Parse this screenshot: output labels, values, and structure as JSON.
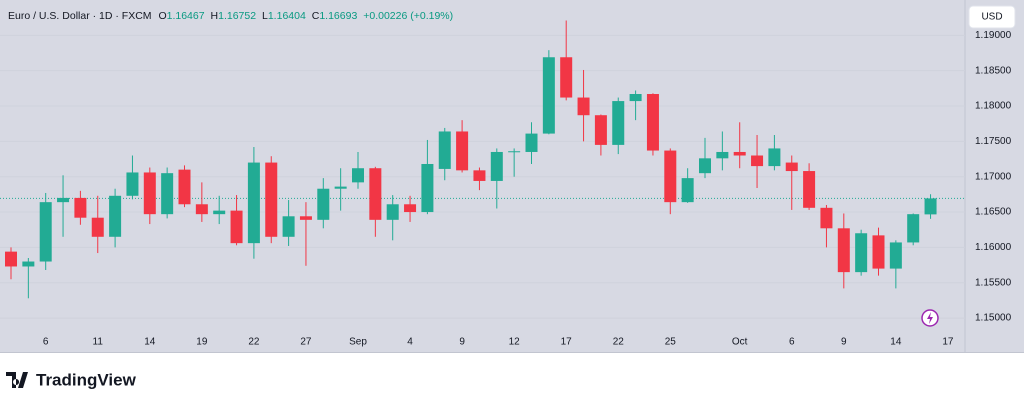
{
  "chart_data": {
    "type": "candlestick",
    "title": "Euro / U.S. Dollar · 1D · FXCM",
    "legend": {
      "o_label": "O",
      "open": 1.16467,
      "h_label": "H",
      "high": 1.16752,
      "l_label": "L",
      "low": 1.16404,
      "c_label": "C",
      "close": 1.16693,
      "change": "+0.00226 (+0.19%)"
    },
    "currency": "USD",
    "brand": "TradingView",
    "up_color": "#22ab94",
    "down_color": "#f23645",
    "last_price_line": true,
    "categories": [
      null,
      null,
      "6",
      null,
      null,
      "11",
      null,
      null,
      "14",
      null,
      null,
      "19",
      null,
      null,
      "22",
      null,
      null,
      "27",
      null,
      null,
      "Sep",
      null,
      null,
      "4",
      null,
      null,
      "9",
      null,
      null,
      "12",
      null,
      null,
      "17",
      null,
      null,
      "22",
      null,
      null,
      "25",
      null,
      null,
      null,
      "Oct",
      null,
      null,
      "6",
      null,
      null,
      "9",
      null,
      null,
      "14",
      null,
      null,
      "17"
    ],
    "open": [
      1.1594,
      1.1573,
      1.158,
      1.1664,
      1.167,
      1.1642,
      1.1615,
      1.1673,
      1.1706,
      1.1647,
      1.171,
      1.1661,
      1.1647,
      1.1652,
      1.1606,
      1.172,
      1.1615,
      1.1644,
      1.1639,
      1.1683,
      1.1692,
      1.1712,
      1.1639,
      1.1661,
      1.165,
      1.1711,
      1.1764,
      1.1709,
      1.1694,
      1.1735,
      1.1735,
      1.1761,
      1.1869,
      1.1812,
      1.1787,
      1.1745,
      1.1807,
      1.1817,
      1.1737,
      1.1664,
      1.1705,
      1.1726,
      1.1735,
      1.173,
      1.1715,
      1.172,
      1.1708,
      1.1656,
      1.1627,
      1.1565,
      1.1617,
      1.157,
      1.1607,
      1.16467,
      null
    ],
    "high": [
      1.16,
      1.1585,
      1.1677,
      1.1702,
      1.168,
      1.1673,
      1.1683,
      1.173,
      1.1713,
      1.1713,
      1.1716,
      1.1692,
      1.1673,
      1.1674,
      1.1742,
      1.1729,
      1.1667,
      1.1664,
      1.1698,
      1.1712,
      1.1735,
      1.1714,
      1.1674,
      1.1673,
      1.1752,
      1.1769,
      1.178,
      1.1713,
      1.174,
      1.174,
      1.1777,
      1.1879,
      1.1921,
      1.1851,
      1.1788,
      1.1812,
      1.1822,
      1.1818,
      1.174,
      1.1712,
      1.1755,
      1.1764,
      1.1777,
      1.1759,
      1.1759,
      1.173,
      1.1719,
      1.166,
      1.1648,
      1.1625,
      1.1628,
      1.161,
      1.1648,
      1.16752,
      null
    ],
    "low": [
      1.1555,
      1.1528,
      1.1568,
      1.1615,
      1.1632,
      1.1592,
      1.16,
      1.1668,
      1.1633,
      1.1641,
      1.1657,
      1.1636,
      1.1633,
      1.1603,
      1.1584,
      1.1606,
      1.1602,
      1.1574,
      1.1627,
      1.1652,
      1.1683,
      1.1615,
      1.161,
      1.1636,
      1.1647,
      1.1695,
      1.1706,
      1.1681,
      1.1655,
      1.17,
      1.1718,
      1.176,
      1.1808,
      1.175,
      1.173,
      1.1732,
      1.178,
      1.173,
      1.1647,
      1.1663,
      1.1698,
      1.1709,
      1.1712,
      1.1684,
      1.1709,
      1.1653,
      1.1653,
      1.16,
      1.1542,
      1.156,
      1.156,
      1.1542,
      1.1603,
      1.16404,
      null
    ],
    "close": [
      1.1573,
      1.158,
      1.1664,
      1.167,
      1.1642,
      1.1615,
      1.1673,
      1.1706,
      1.1647,
      1.1705,
      1.1661,
      1.1647,
      1.1652,
      1.1606,
      1.172,
      1.1615,
      1.1644,
      1.1639,
      1.1683,
      1.1686,
      1.1712,
      1.1639,
      1.1661,
      1.165,
      1.1718,
      1.1764,
      1.1709,
      1.1694,
      1.1735,
      1.1736,
      1.1761,
      1.1869,
      1.1812,
      1.1787,
      1.1745,
      1.1807,
      1.1817,
      1.1737,
      1.1664,
      1.1698,
      1.1726,
      1.1735,
      1.173,
      1.1715,
      1.174,
      1.1708,
      1.1656,
      1.1627,
      1.1565,
      1.162,
      1.157,
      1.1607,
      1.1647,
      1.16693,
      null
    ],
    "ylim": [
      1.1452,
      1.195
    ],
    "yticks": [
      {
        "value": 1.15,
        "label": "1.15000"
      },
      {
        "value": 1.155,
        "label": "1.15500"
      },
      {
        "value": 1.16,
        "label": "1.16000"
      },
      {
        "value": 1.165,
        "label": "1.16500"
      },
      {
        "value": 1.17,
        "label": "1.17000"
      },
      {
        "value": 1.175,
        "label": "1.17500"
      },
      {
        "value": 1.18,
        "label": "1.18000"
      },
      {
        "value": 1.185,
        "label": "1.18500"
      },
      {
        "value": 1.19,
        "label": "1.19000"
      }
    ]
  }
}
